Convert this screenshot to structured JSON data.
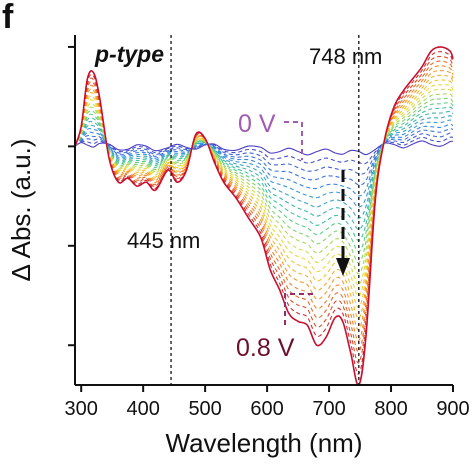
{
  "panel_label": "f",
  "chart_data": {
    "type": "line",
    "xlabel": "Wavelength (nm)",
    "ylabel": "Δ Abs. (a.u.)",
    "xlim": [
      290,
      900
    ],
    "ylim": [
      -0.6,
      0.28
    ],
    "xticks": [
      300,
      400,
      500,
      600,
      700,
      800,
      900
    ],
    "xtick_labels": [
      "300",
      "400",
      "500",
      "600",
      "700",
      "800",
      "900"
    ],
    "yticks": [
      -0.5,
      -0.25,
      0,
      0.25
    ],
    "ytick_labels_shown": false,
    "grid": false,
    "legend": "none",
    "color_scale": {
      "start": "#4b3fc6",
      "end": "#c8102e",
      "direction": "0 V (blue/violet) to 0.8 V (red)"
    },
    "x": [
      290,
      300,
      310,
      320,
      330,
      345,
      360,
      375,
      390,
      405,
      420,
      440,
      455,
      470,
      485,
      500,
      515,
      530,
      550,
      570,
      590,
      605,
      620,
      635,
      650,
      665,
      680,
      695,
      710,
      722,
      735,
      748,
      760,
      775,
      790,
      805,
      820,
      835,
      850,
      865,
      880,
      895,
      900
    ],
    "series": [
      {
        "values": [
          0,
          0.05,
          0.17,
          0.185,
          0.12,
          -0.03,
          -0.09,
          -0.08,
          -0.1,
          -0.09,
          -0.11,
          -0.06,
          -0.09,
          -0.06,
          0.03,
          0.02,
          -0.04,
          -0.09,
          -0.13,
          -0.18,
          -0.23,
          -0.31,
          -0.36,
          -0.42,
          -0.44,
          -0.45,
          -0.5,
          -0.48,
          -0.43,
          -0.44,
          -0.52,
          -0.6,
          -0.47,
          -0.13,
          0.02,
          0.1,
          0.14,
          0.17,
          0.2,
          0.24,
          0.25,
          0.24,
          0.22
        ]
      }
    ],
    "annotations": [
      {
        "text": "p-type",
        "x": 340,
        "y": 0.25
      },
      {
        "text": "748 nm",
        "x": 748,
        "y": 0.25,
        "guide": "vertical dashed line"
      },
      {
        "text": "445 nm",
        "x": 445,
        "y": -0.3,
        "guide": "vertical dashed line"
      },
      {
        "text": "0 V",
        "color": "#a25bb5"
      },
      {
        "text": "0.8 V",
        "color": "#6b0f2a"
      },
      {
        "text": "arrow",
        "from_y": -0.05,
        "to_y": -0.4,
        "x": 720
      }
    ],
    "guide_lines_x": [
      445,
      748
    ]
  }
}
